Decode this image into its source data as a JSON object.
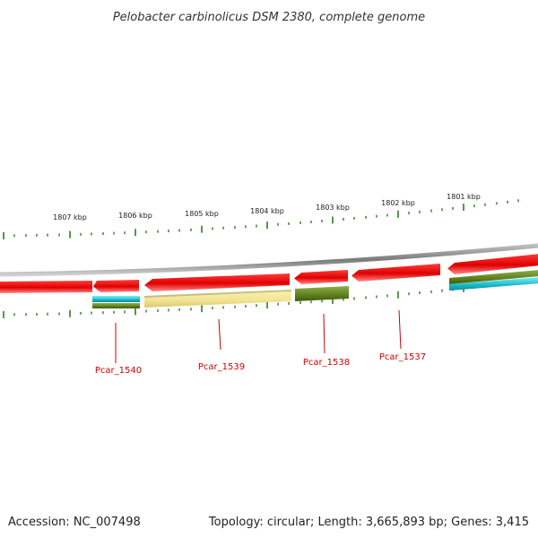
{
  "title": "Pelobacter carbinolicus DSM 2380, complete genome",
  "footer": {
    "accession": "Accession: NC_007498",
    "summary": "Topology: circular; Length: 3,665,893 bp; Genes: 3,415"
  },
  "ruler": {
    "labels": [
      "1807 kbp",
      "1806 kbp",
      "1805 kbp",
      "1804 kbp",
      "1803 kbp",
      "1802 kbp",
      "1801 kbp"
    ],
    "tick_color": "#2e7d1e"
  },
  "genes": [
    {
      "locus": "Pcar_1540"
    },
    {
      "locus": "Pcar_1539"
    },
    {
      "locus": "Pcar_1538"
    },
    {
      "locus": "Pcar_1537"
    }
  ],
  "colors": {
    "cds": "#ee1111",
    "backbone": "#888888",
    "cog_cyan": "#22c8d8",
    "cog_olive": "#6b8e23",
    "cog_khaki": "#f0e68c",
    "label": "#cc0000"
  }
}
